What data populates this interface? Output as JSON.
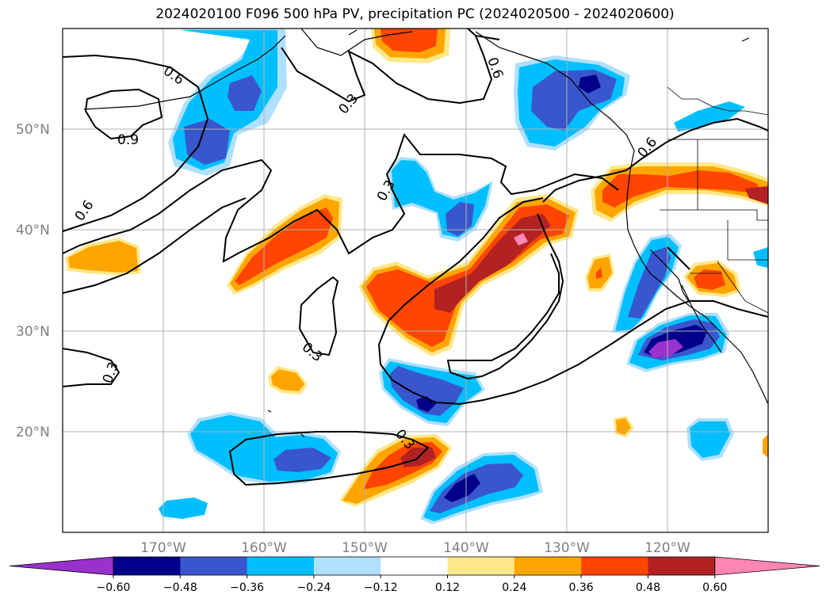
{
  "title": "2024020100 F096 500 hPa PV, precipitation PC (2024020500 - 2024020600)",
  "lat_labels": [
    "50°N",
    "40°N",
    "30°N",
    "20°N"
  ],
  "lon_labels": [
    "170°W",
    "160°W",
    "150°W",
    "140°W",
    "130°W",
    "120°W"
  ],
  "colorbar": {
    "ticks": [
      "−0.60",
      "−0.48",
      "−0.36",
      "−0.24",
      "−0.12",
      "0.12",
      "0.24",
      "0.36",
      "0.48",
      "0.60"
    ],
    "colors": [
      "#9932cc",
      "#00008b",
      "#3a56cc",
      "#00bfff",
      "#b0e0ff",
      "#ffffff",
      "#ffe88a",
      "#ffa500",
      "#ff4500",
      "#b22222",
      "#ff85b3"
    ]
  },
  "contour_labels": [
    "0.6",
    "0.9",
    "0.3",
    "0.6",
    "0.6",
    "0.3",
    "0.3",
    "0.3",
    "0.3",
    "0.6"
  ],
  "colors": {
    "contour": "#000000",
    "grid": "#b0b0b0",
    "coast": "#000000"
  }
}
